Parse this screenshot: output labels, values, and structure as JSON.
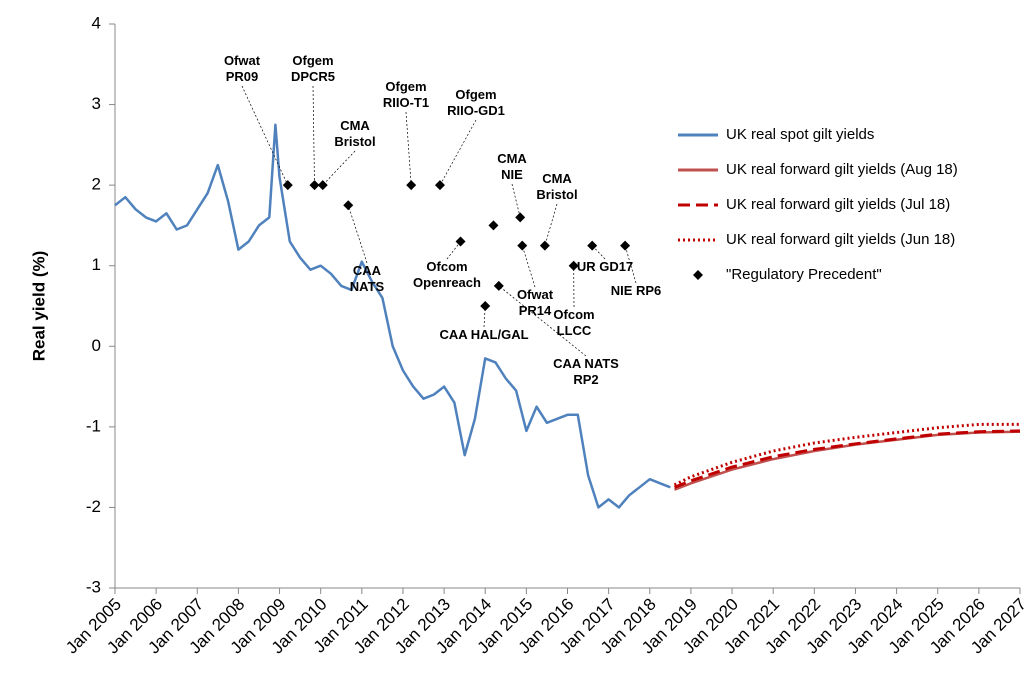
{
  "chart_data": {
    "type": "line",
    "y_label": "Real yield (%)",
    "xlim": [
      2005,
      2027
    ],
    "xticks": [
      {
        "value": 2005,
        "label": "Jan 2005"
      },
      {
        "value": 2006,
        "label": "Jan 2006"
      },
      {
        "value": 2007,
        "label": "Jan 2007"
      },
      {
        "value": 2008,
        "label": "Jan 2008"
      },
      {
        "value": 2009,
        "label": "Jan 2009"
      },
      {
        "value": 2010,
        "label": "Jan 2010"
      },
      {
        "value": 2011,
        "label": "Jan 2011"
      },
      {
        "value": 2012,
        "label": "Jan 2012"
      },
      {
        "value": 2013,
        "label": "Jan 2013"
      },
      {
        "value": 2014,
        "label": "Jan 2014"
      },
      {
        "value": 2015,
        "label": "Jan 2015"
      },
      {
        "value": 2016,
        "label": "Jan 2016"
      },
      {
        "value": 2017,
        "label": "Jan 2017"
      },
      {
        "value": 2018,
        "label": "Jan 2018"
      },
      {
        "value": 2019,
        "label": "Jan 2019"
      },
      {
        "value": 2020,
        "label": "Jan 2020"
      },
      {
        "value": 2021,
        "label": "Jan 2021"
      },
      {
        "value": 2022,
        "label": "Jan 2022"
      },
      {
        "value": 2023,
        "label": "Jan 2023"
      },
      {
        "value": 2024,
        "label": "Jan 2024"
      },
      {
        "value": 2025,
        "label": "Jan 2025"
      },
      {
        "value": 2026,
        "label": "Jan 2026"
      },
      {
        "value": 2027,
        "label": "Jan 2027"
      }
    ],
    "ylim": [
      -3,
      4
    ],
    "yticks": [
      -3,
      -2,
      -1,
      0,
      1,
      2,
      3,
      4
    ],
    "grid": false,
    "legend": "right",
    "series": [
      {
        "name": "UK real spot gilt yields",
        "color": "#4f81bd",
        "dash": "solid",
        "x": [
          2005,
          2005.25,
          2005.5,
          2005.75,
          2006,
          2006.25,
          2006.5,
          2006.75,
          2007,
          2007.25,
          2007.5,
          2007.75,
          2008,
          2008.25,
          2008.5,
          2008.75,
          2008.9,
          2009,
          2009.25,
          2009.5,
          2009.75,
          2010,
          2010.25,
          2010.5,
          2010.75,
          2011,
          2011.25,
          2011.5,
          2011.75,
          2012,
          2012.25,
          2012.5,
          2012.75,
          2013,
          2013.25,
          2013.5,
          2013.75,
          2014,
          2014.25,
          2014.5,
          2014.75,
          2015,
          2015.25,
          2015.5,
          2015.75,
          2016,
          2016.25,
          2016.5,
          2016.75,
          2017,
          2017.25,
          2017.5,
          2017.75,
          2018,
          2018.25,
          2018.5
        ],
        "values": [
          1.75,
          1.85,
          1.7,
          1.6,
          1.55,
          1.65,
          1.45,
          1.5,
          1.7,
          1.9,
          2.25,
          1.8,
          1.2,
          1.3,
          1.5,
          1.6,
          2.75,
          2.1,
          1.3,
          1.1,
          0.95,
          1.0,
          0.9,
          0.75,
          0.7,
          1.05,
          0.8,
          0.6,
          0.0,
          -0.3,
          -0.5,
          -0.65,
          -0.6,
          -0.5,
          -0.7,
          -1.35,
          -0.9,
          -0.15,
          -0.2,
          -0.4,
          -0.55,
          -1.05,
          -0.75,
          -0.95,
          -0.9,
          -0.85,
          -0.85,
          -1.6,
          -2.0,
          -1.9,
          -2.0,
          -1.85,
          -1.75,
          -1.65,
          -1.7,
          -1.75
        ]
      },
      {
        "name": "UK real forward gilt yields (Aug 18)",
        "color": "#c0504d",
        "dash": "solid",
        "x": [
          2018.6,
          2019,
          2020,
          2021,
          2022,
          2023,
          2024,
          2025,
          2026,
          2027
        ],
        "values": [
          -1.78,
          -1.7,
          -1.53,
          -1.4,
          -1.3,
          -1.22,
          -1.16,
          -1.1,
          -1.07,
          -1.06
        ]
      },
      {
        "name": "UK real forward gilt yields (Jul 18)",
        "color": "#c00000",
        "dash": "dashed",
        "x": [
          2018.6,
          2019,
          2020,
          2021,
          2022,
          2023,
          2024,
          2025,
          2026,
          2027
        ],
        "values": [
          -1.75,
          -1.67,
          -1.5,
          -1.37,
          -1.28,
          -1.21,
          -1.15,
          -1.09,
          -1.06,
          -1.05
        ]
      },
      {
        "name": "UK real forward gilt yields (Jun 18)",
        "color": "#c00000",
        "dash": "dotted",
        "x": [
          2018.6,
          2019,
          2020,
          2021,
          2022,
          2023,
          2024,
          2025,
          2026,
          2027
        ],
        "values": [
          -1.72,
          -1.62,
          -1.44,
          -1.3,
          -1.2,
          -1.13,
          -1.07,
          -1.01,
          -0.97,
          -0.97
        ]
      },
      {
        "name": "\"Regulatory Precedent\"",
        "color": "#000000",
        "type": "scatter",
        "x": [
          2009.2,
          2009.85,
          2010.05,
          2010.67,
          2012.2,
          2012.9,
          2013.4,
          2014.0,
          2014.2,
          2014.33,
          2014.85,
          2014.9,
          2015.45,
          2016.15,
          2016.6,
          2017.4
        ],
        "values": [
          2,
          2,
          2,
          1.75,
          2,
          2,
          1.3,
          0.5,
          1.5,
          0.75,
          1.6,
          1.25,
          1.25,
          1.0,
          1.25,
          1.25
        ],
        "labels": [
          [
            "Ofwat",
            "PR09"
          ],
          [
            "Ofgem",
            "DPCR5"
          ],
          [
            "CMA",
            "Bristol"
          ],
          [
            "CAA",
            "NATS"
          ],
          [
            "Ofgem",
            "RIIO-T1"
          ],
          [
            "Ofgem",
            "RIIO-GD1"
          ],
          [
            "Ofcom",
            "Openreach"
          ],
          [
            "CAA HAL/GAL"
          ],
          null,
          [
            "CAA NATS",
            "RP2"
          ],
          [
            "CMA",
            "NIE"
          ],
          [
            "Ofwat",
            "PR14"
          ],
          [
            "CMA",
            "Bristol"
          ],
          [
            "Ofcom",
            "LLCC"
          ],
          [
            "UR GD17"
          ],
          [
            "NIE RP6"
          ]
        ]
      }
    ]
  }
}
